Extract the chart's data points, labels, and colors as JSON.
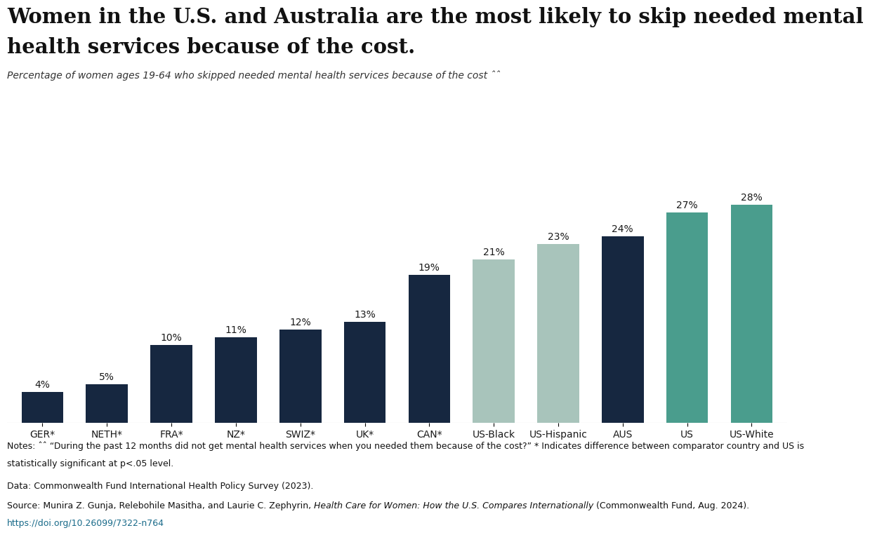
{
  "categories": [
    "GER*",
    "NETH*",
    "FRA*",
    "NZ*",
    "SWIZ*",
    "UK*",
    "CAN*",
    "US-Black",
    "US-Hispanic",
    "AUS",
    "US",
    "US-White"
  ],
  "values": [
    4,
    5,
    10,
    11,
    12,
    13,
    19,
    21,
    23,
    24,
    27,
    28
  ],
  "bar_colors": [
    "#162740",
    "#162740",
    "#162740",
    "#162740",
    "#162740",
    "#162740",
    "#162740",
    "#a8c4bb",
    "#a8c4bb",
    "#162740",
    "#4a9d8d",
    "#4a9d8d"
  ],
  "title_line1": "Women in the U.S. and Australia are the most likely to skip needed mental",
  "title_line2": "health services because of the cost.",
  "subtitle": "Percentage of women ages 19-64 who skipped needed mental health services because of the cost ˆˆ",
  "ylim": [
    0,
    32
  ],
  "background_color": "#ffffff",
  "notes_line1": "Notes: ˆˆ “During the past 12 months did not get mental health services when you needed them because of the cost?” * Indicates difference between comparator country and US is",
  "notes_line2": "statistically significant at p<.05 level.",
  "data_source": "Data: Commonwealth Fund International Health Policy Survey (2023).",
  "source_line1": "Source: Munira Z. Gunja, Relebohile Masitha, and Laurie C. Zephyrin, ",
  "source_italic": "Health Care for Women: How the U.S. Compares Internationally",
  "source_line2": " (Commonwealth Fund, Aug. 2024).",
  "url": "https://doi.org/10.26099/7322-n764",
  "title_fontsize": 21,
  "subtitle_fontsize": 10,
  "bar_label_fontsize": 10,
  "tick_fontsize": 10,
  "notes_fontsize": 9
}
